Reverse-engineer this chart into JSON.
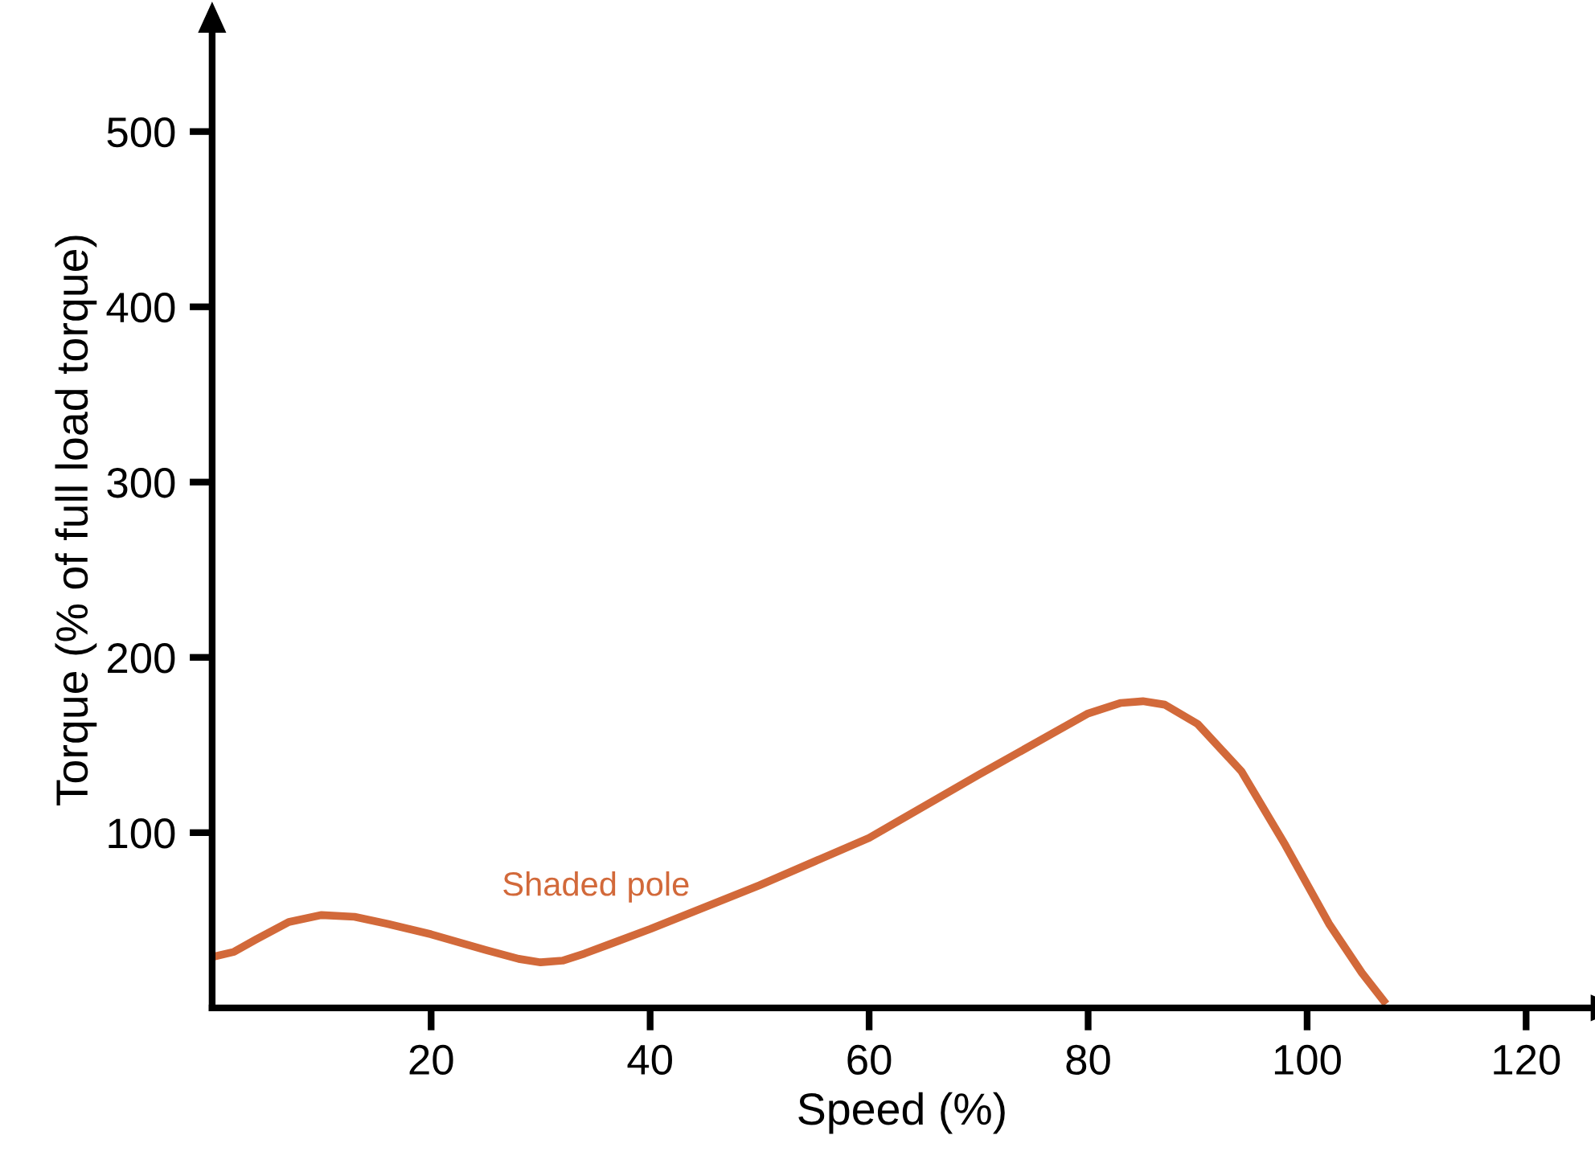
{
  "chart_data": {
    "type": "line",
    "xlabel": "Speed (%)",
    "ylabel": "Torque (% of full load torque)",
    "xlim": [
      0,
      126
    ],
    "ylim": [
      0,
      557
    ],
    "xticks": [
      20,
      40,
      60,
      80,
      100,
      120
    ],
    "yticks": [
      100,
      200,
      300,
      400,
      500
    ],
    "grid": false,
    "legend": false,
    "marker": "none",
    "line_style": "solid",
    "series": [
      {
        "name": "Shaded pole",
        "color": "#d2693a",
        "x": [
          0,
          2,
          4,
          7,
          10,
          13,
          16,
          20,
          25,
          28,
          30,
          32,
          34,
          40,
          50,
          60,
          70,
          80,
          83,
          85,
          87,
          90,
          94,
          98,
          102,
          105,
          107
        ],
        "values": [
          29,
          32,
          39,
          49,
          53,
          52,
          48,
          42,
          33,
          28,
          26,
          27,
          31,
          45,
          70,
          97,
          133,
          168,
          174,
          175,
          173,
          162,
          135,
          93,
          48,
          20,
          4
        ]
      }
    ]
  }
}
